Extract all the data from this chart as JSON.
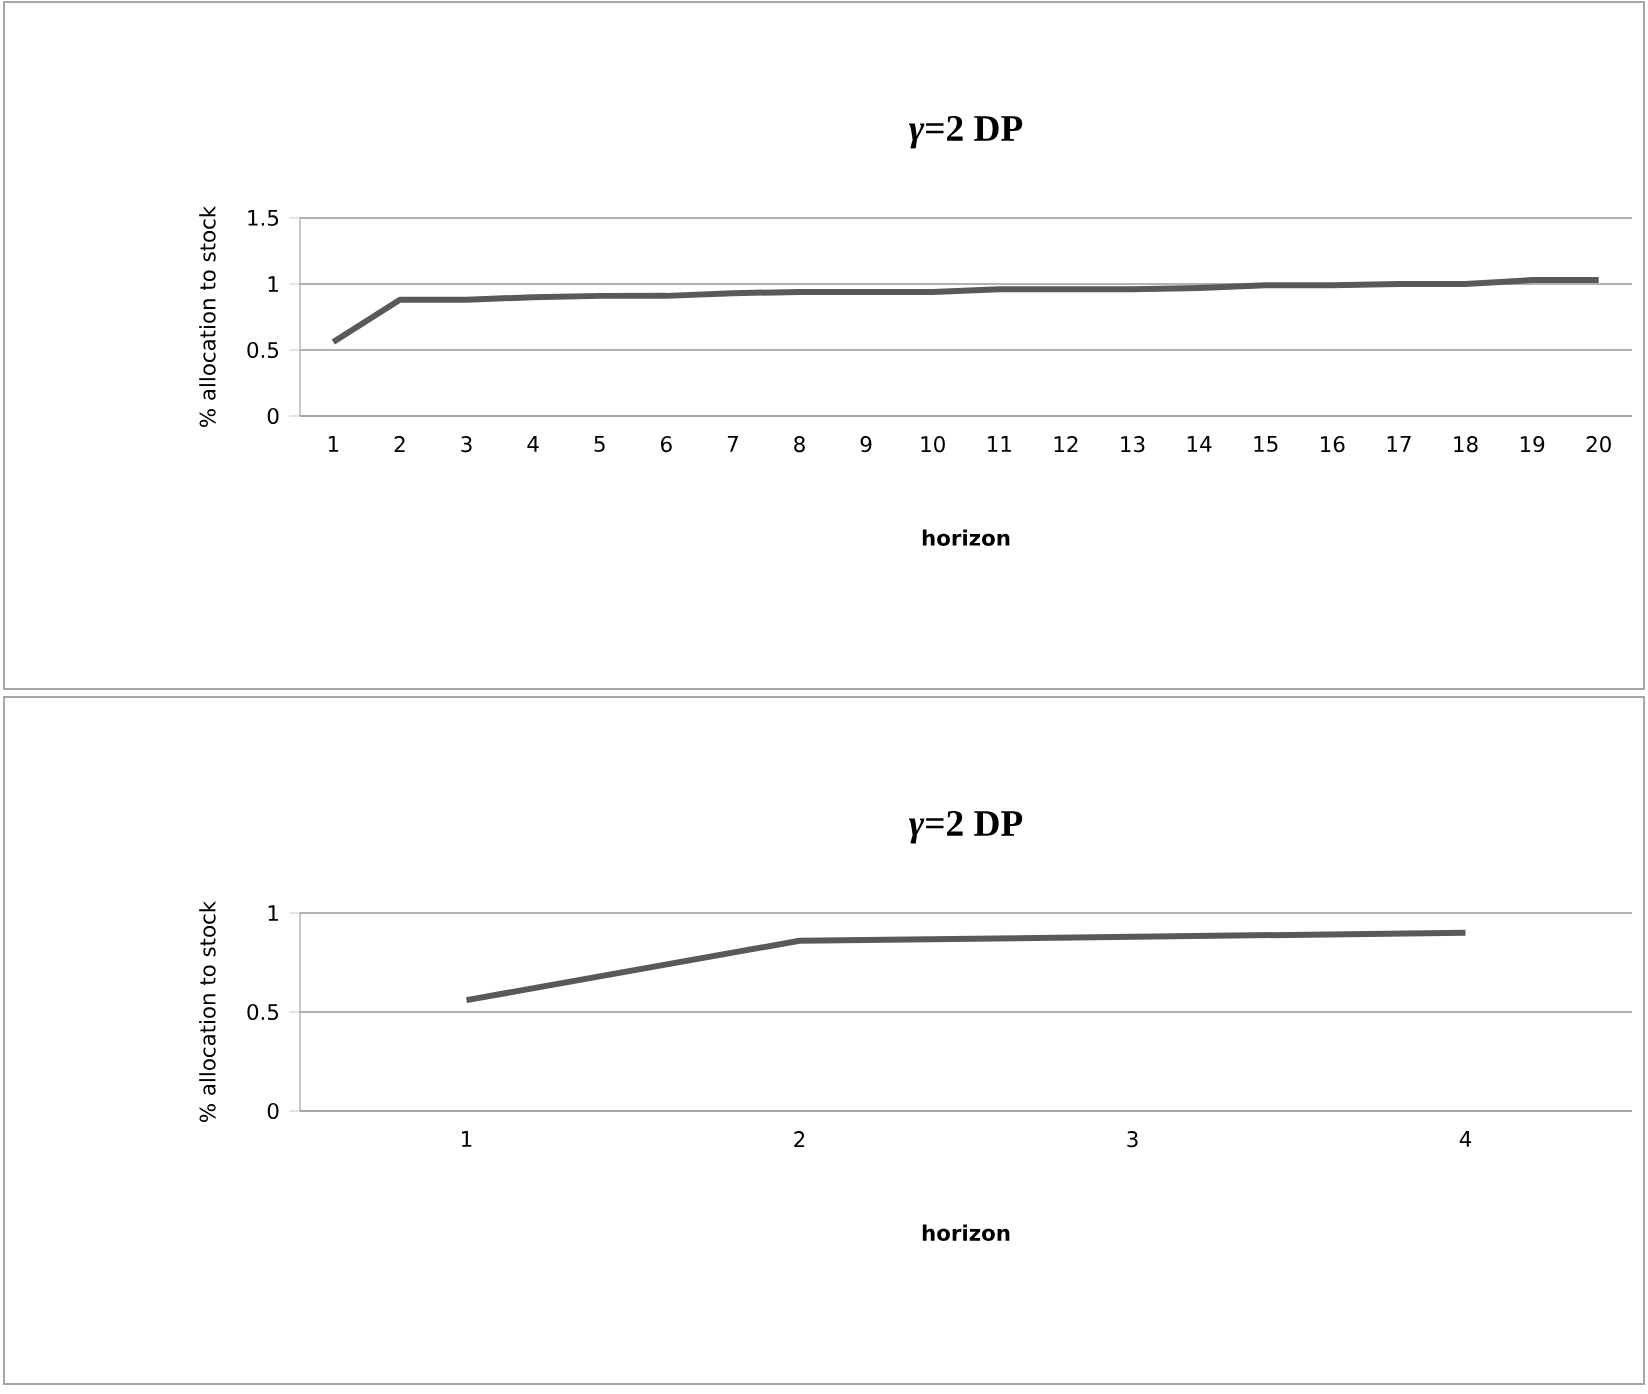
{
  "chart_data": [
    {
      "type": "line",
      "title": "*γ*=2 DP",
      "xlabel": "horizon",
      "ylabel": "% allocation to stock",
      "categories": [
        "1",
        "2",
        "3",
        "4",
        "5",
        "6",
        "7",
        "8",
        "9",
        "10",
        "11",
        "12",
        "13",
        "14",
        "15",
        "16",
        "17",
        "18",
        "19",
        "20"
      ],
      "series": [
        {
          "color": "#595959",
          "values": [
            0.56,
            0.88,
            0.88,
            0.9,
            0.91,
            0.91,
            0.93,
            0.94,
            0.94,
            0.94,
            0.96,
            0.96,
            0.96,
            0.97,
            0.99,
            0.99,
            1.0,
            1.0,
            1.03,
            1.03
          ]
        }
      ],
      "ylim": [
        0,
        1.5
      ],
      "yticks": [
        0,
        0.5,
        1,
        1.5
      ],
      "grid": "y"
    },
    {
      "type": "line",
      "title": "*γ*=2 DP",
      "xlabel": "horizon",
      "ylabel": "% allocation to stock",
      "categories": [
        "1",
        "2",
        "3",
        "4"
      ],
      "series": [
        {
          "color": "#595959",
          "values": [
            0.56,
            0.86,
            0.88,
            0.9
          ]
        }
      ],
      "ylim": [
        0,
        1
      ],
      "yticks": [
        0,
        0.5,
        1
      ],
      "grid": "y"
    }
  ]
}
